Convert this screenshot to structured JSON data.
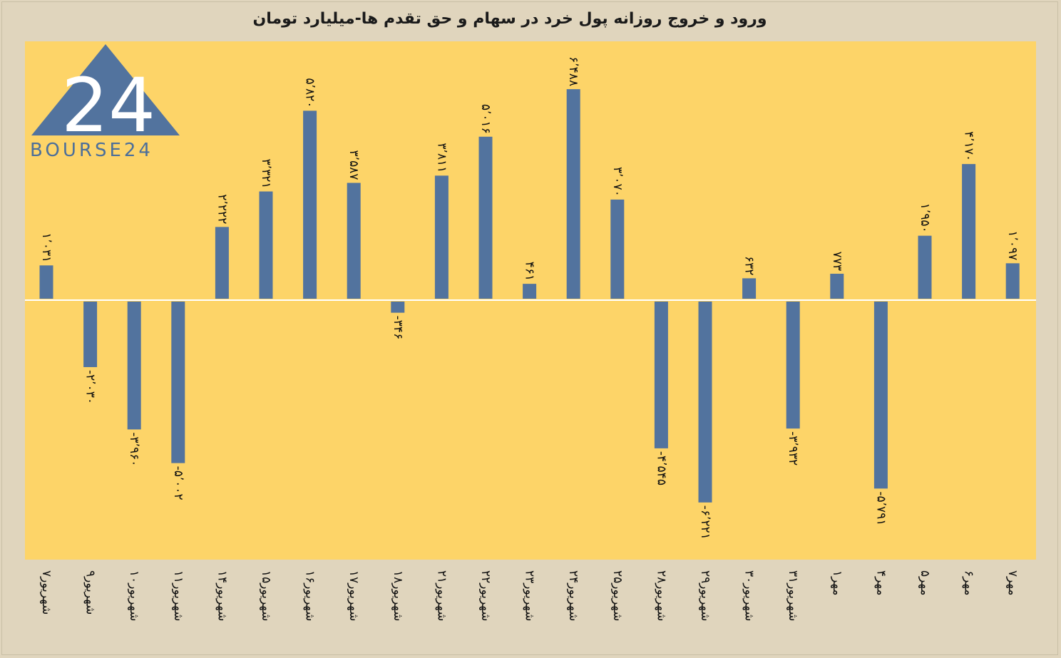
{
  "title": "ورود و خروج روزانه پول خرد در سهام و حق تقدم ها-میلیارد تومان",
  "logo": {
    "name": "bourse24-logo",
    "text": "BOURSE24",
    "mark": "24"
  },
  "colors": {
    "bar": "#52739e",
    "plot_bg": "#fdd468",
    "page_bg": "#e0d5bd",
    "zero_line": "#ffffff"
  },
  "chart_data": {
    "type": "bar",
    "title": "ورود و خروج روزانه پول خرد در سهام و حق تقدم ها-میلیارد تومان",
    "categories": [
      "۷شهریور",
      "۹شهریور",
      "۱۰شهریور",
      "۱۱شهریور",
      "۱۴شهریور",
      "۱۵شهریور",
      "۱۶شهریور",
      "۱۷شهریور",
      "۱۸شهریور",
      "۲۱شهریور",
      "۲۲شهریور",
      "۲۳شهریور",
      "۲۴شهریور",
      "۲۵شهریور",
      "۲۸شهریور",
      "۲۹شهریور",
      "۳۰شهریور",
      "۳۱شهریور",
      "۱مهر",
      "۴مهر",
      "۵مهر",
      "۶مهر",
      "۷مهر"
    ],
    "values": [
      1031,
      -2030,
      -3960,
      -5002,
      2222,
      3321,
      5820,
      3587,
      -346,
      3811,
      5016,
      461,
      6488,
      3070,
      -4545,
      -6221,
      632,
      -3932,
      773,
      -5791,
      1950,
      4170,
      1097
    ],
    "data_labels": [
      "۱٬۰۳۱",
      "-۲٬۰۳۰",
      "-۳٬۹۶۰",
      "-۵٬۰۰۲",
      "۲٬۲۲۲",
      "۳٬۳۲۱",
      "۵٬۸۲۰",
      "۳٬۵۸۷",
      "-۳۴۶",
      "۳٬۸۱۱",
      "۵٬۰۱۶",
      "۴۶۱",
      "۶٬۴۸۸",
      "۳٬۰۷۰",
      "-۴٬۵۴۵",
      "-۶٬۲۲۱",
      "۶۳۲",
      "-۳٬۹۳۲",
      "۷۷۳",
      "-۵٬۷۹۱",
      "۱٬۹۵۰",
      "۴٬۱۷۰",
      "۱٬۰۹۷"
    ],
    "ylim": [
      -8000,
      8000
    ],
    "grid": false,
    "legend": "none"
  }
}
